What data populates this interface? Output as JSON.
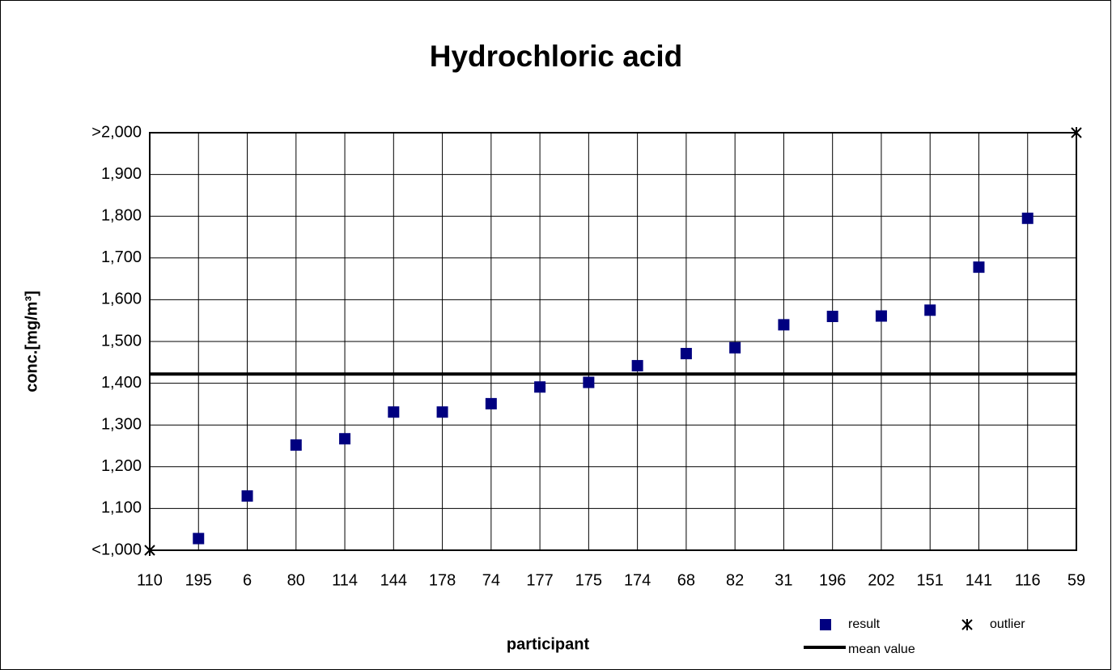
{
  "chart_data": {
    "type": "scatter",
    "title": "Hydrochloric acid",
    "x_label": "participant",
    "y_label": "conc.[mg/m³]",
    "categories": [
      "110",
      "195",
      "6",
      "80",
      "114",
      "144",
      "178",
      "74",
      "177",
      "175",
      "174",
      "68",
      "82",
      "31",
      "196",
      "202",
      "151",
      "141",
      "116",
      "59"
    ],
    "series": [
      {
        "name": "result",
        "color": "#000080",
        "marker": "square",
        "values": [
          null,
          1028,
          1130,
          1252,
          1267,
          1331,
          1331,
          1351,
          1391,
          1402,
          1442,
          1471,
          1485,
          1540,
          1560,
          1561,
          1575,
          1678,
          1795,
          null
        ]
      },
      {
        "name": "outlier",
        "color": "#000000",
        "marker": "asterisk",
        "values": [
          1000,
          null,
          null,
          null,
          null,
          null,
          null,
          null,
          null,
          null,
          null,
          null,
          null,
          null,
          null,
          null,
          null,
          null,
          null,
          2000
        ]
      }
    ],
    "mean": {
      "name": "mean value",
      "value": 1422,
      "color": "#000000"
    },
    "ylim": [
      1000,
      2000
    ],
    "yticks": [
      {
        "value": 1000,
        "label": "<1,000"
      },
      {
        "value": 1100,
        "label": "1,100"
      },
      {
        "value": 1200,
        "label": "1,200"
      },
      {
        "value": 1300,
        "label": "1,300"
      },
      {
        "value": 1400,
        "label": "1,400"
      },
      {
        "value": 1500,
        "label": "1,500"
      },
      {
        "value": 1600,
        "label": "1,600"
      },
      {
        "value": 1700,
        "label": "1,700"
      },
      {
        "value": 1800,
        "label": "1,800"
      },
      {
        "value": 1900,
        "label": "1,900"
      },
      {
        "value": 2000,
        "label": ">2,000"
      }
    ],
    "grid": true
  }
}
